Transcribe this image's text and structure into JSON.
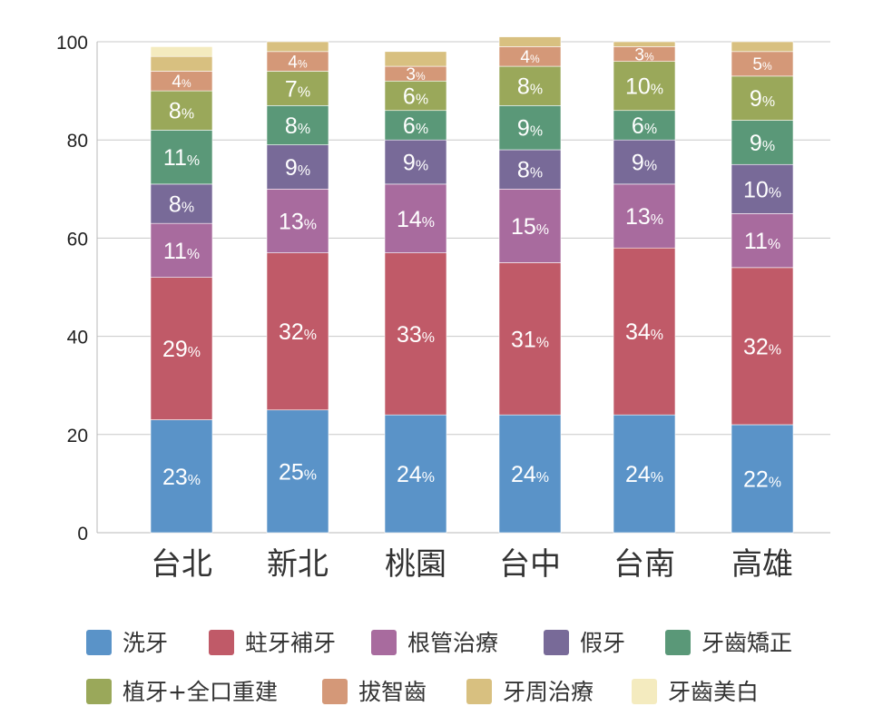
{
  "chart_data": {
    "type": "bar",
    "stacked": true,
    "title": "",
    "xlabel": "",
    "ylabel": "",
    "ylim": [
      0,
      100
    ],
    "yticks": [
      0,
      20,
      40,
      60,
      80,
      100
    ],
    "grid": true,
    "legend_position": "bottom",
    "categories": [
      "台北",
      "新北",
      "桃園",
      "台中",
      "台南",
      "高雄"
    ],
    "series": [
      {
        "name": "洗牙",
        "color": "#5a93c8",
        "values": [
          23,
          25,
          24,
          24,
          24,
          22
        ],
        "labels": [
          "23",
          "25",
          "24",
          "24",
          "24",
          "22"
        ]
      },
      {
        "name": "蛀牙補牙",
        "color": "#c05a68",
        "values": [
          29,
          32,
          33,
          31,
          34,
          32
        ],
        "labels": [
          "29",
          "32",
          "33",
          "31",
          "34",
          "32"
        ]
      },
      {
        "name": "根管治療",
        "color": "#a86b9e",
        "values": [
          11,
          13,
          14,
          15,
          13,
          11
        ],
        "labels": [
          "11",
          "13",
          "14",
          "15",
          "13",
          "11"
        ]
      },
      {
        "name": "假牙",
        "color": "#786a98",
        "values": [
          8,
          9,
          9,
          8,
          9,
          10
        ],
        "labels": [
          "8",
          "9",
          "9",
          "8",
          "9",
          "10"
        ]
      },
      {
        "name": "牙齒矯正",
        "color": "#5a9878",
        "values": [
          11,
          8,
          6,
          9,
          6,
          9
        ],
        "labels": [
          "11",
          "8",
          "6",
          "9",
          "6",
          "9"
        ]
      },
      {
        "name": "植牙+全口重建",
        "color": "#9aa85a",
        "values": [
          8,
          7,
          6,
          8,
          10,
          9
        ],
        "labels": [
          "8",
          "7",
          "6",
          "8",
          "10",
          "9"
        ]
      },
      {
        "name": "拔智齒",
        "color": "#d49878",
        "values": [
          4,
          4,
          3,
          4,
          3,
          5
        ],
        "labels": [
          "4",
          "4",
          "3",
          "4",
          "3",
          "5"
        ]
      },
      {
        "name": "牙周治療",
        "color": "#d8c080",
        "values": [
          3,
          2,
          3,
          2,
          1,
          2
        ],
        "labels": [
          "",
          "",
          "",
          "",
          "",
          ""
        ]
      },
      {
        "name": "牙齒美白",
        "color": "#f4ebbf",
        "values": [
          2,
          0,
          0,
          0,
          0,
          0
        ],
        "labels": [
          "",
          "",
          "",
          "",
          "",
          ""
        ]
      }
    ],
    "percent_suffix": "%"
  }
}
